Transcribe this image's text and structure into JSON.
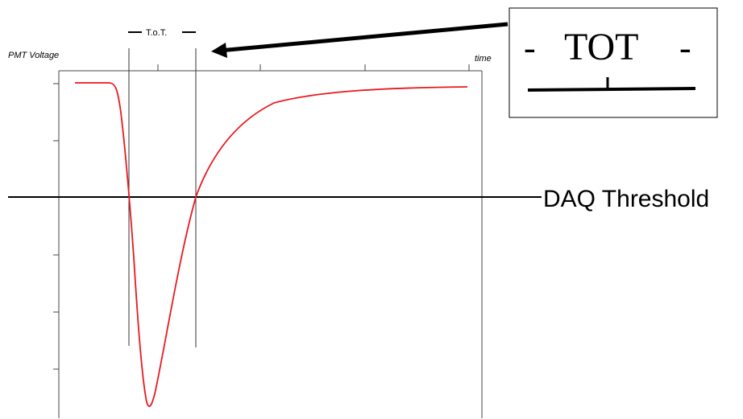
{
  "labels": {
    "y_axis": "PMT Voltage",
    "x_axis": "time",
    "tot_bracket": "T.o.T.",
    "threshold": "DAQ Threshold"
  },
  "callout": {
    "dash_left": "-",
    "title": "TOT",
    "dash_right": "-"
  },
  "colors": {
    "pulse": "#e8191e",
    "axes": "#000000",
    "frame": "#444444"
  }
}
